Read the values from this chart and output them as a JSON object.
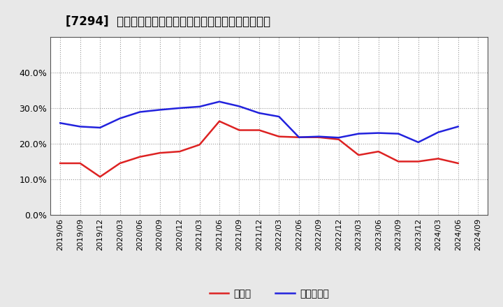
{
  "title": "[7294]  現預金、有利子負債の総資産に対する比率の推移",
  "x_labels": [
    "2019/06",
    "2019/09",
    "2019/12",
    "2020/03",
    "2020/06",
    "2020/09",
    "2020/12",
    "2021/03",
    "2021/06",
    "2021/09",
    "2021/12",
    "2022/03",
    "2022/06",
    "2022/09",
    "2022/12",
    "2023/03",
    "2023/06",
    "2023/09",
    "2023/12",
    "2024/03",
    "2024/06",
    "2024/09"
  ],
  "cash": [
    0.145,
    0.145,
    0.107,
    0.145,
    0.163,
    0.174,
    0.178,
    0.197,
    0.263,
    0.238,
    0.238,
    0.22,
    0.218,
    0.218,
    0.212,
    0.168,
    0.178,
    0.15,
    0.15,
    0.158,
    0.145,
    null
  ],
  "debt": [
    0.258,
    0.248,
    0.245,
    0.271,
    0.289,
    0.295,
    0.3,
    0.304,
    0.318,
    0.305,
    0.286,
    0.276,
    0.218,
    0.22,
    0.217,
    0.228,
    0.23,
    0.228,
    0.204,
    0.232,
    0.248,
    null
  ],
  "cash_color": "#dd2222",
  "debt_color": "#2222dd",
  "background_color": "#e8e8e8",
  "plot_background": "#ffffff",
  "grid_color": "#999999",
  "ylim": [
    0.0,
    0.5
  ],
  "yticks": [
    0.0,
    0.1,
    0.2,
    0.3,
    0.4
  ],
  "legend_cash": "現預金",
  "legend_debt": "有利子負債",
  "title_fontsize": 12,
  "legend_fontsize": 10,
  "tick_fontsize": 8,
  "ytick_fontsize": 9
}
